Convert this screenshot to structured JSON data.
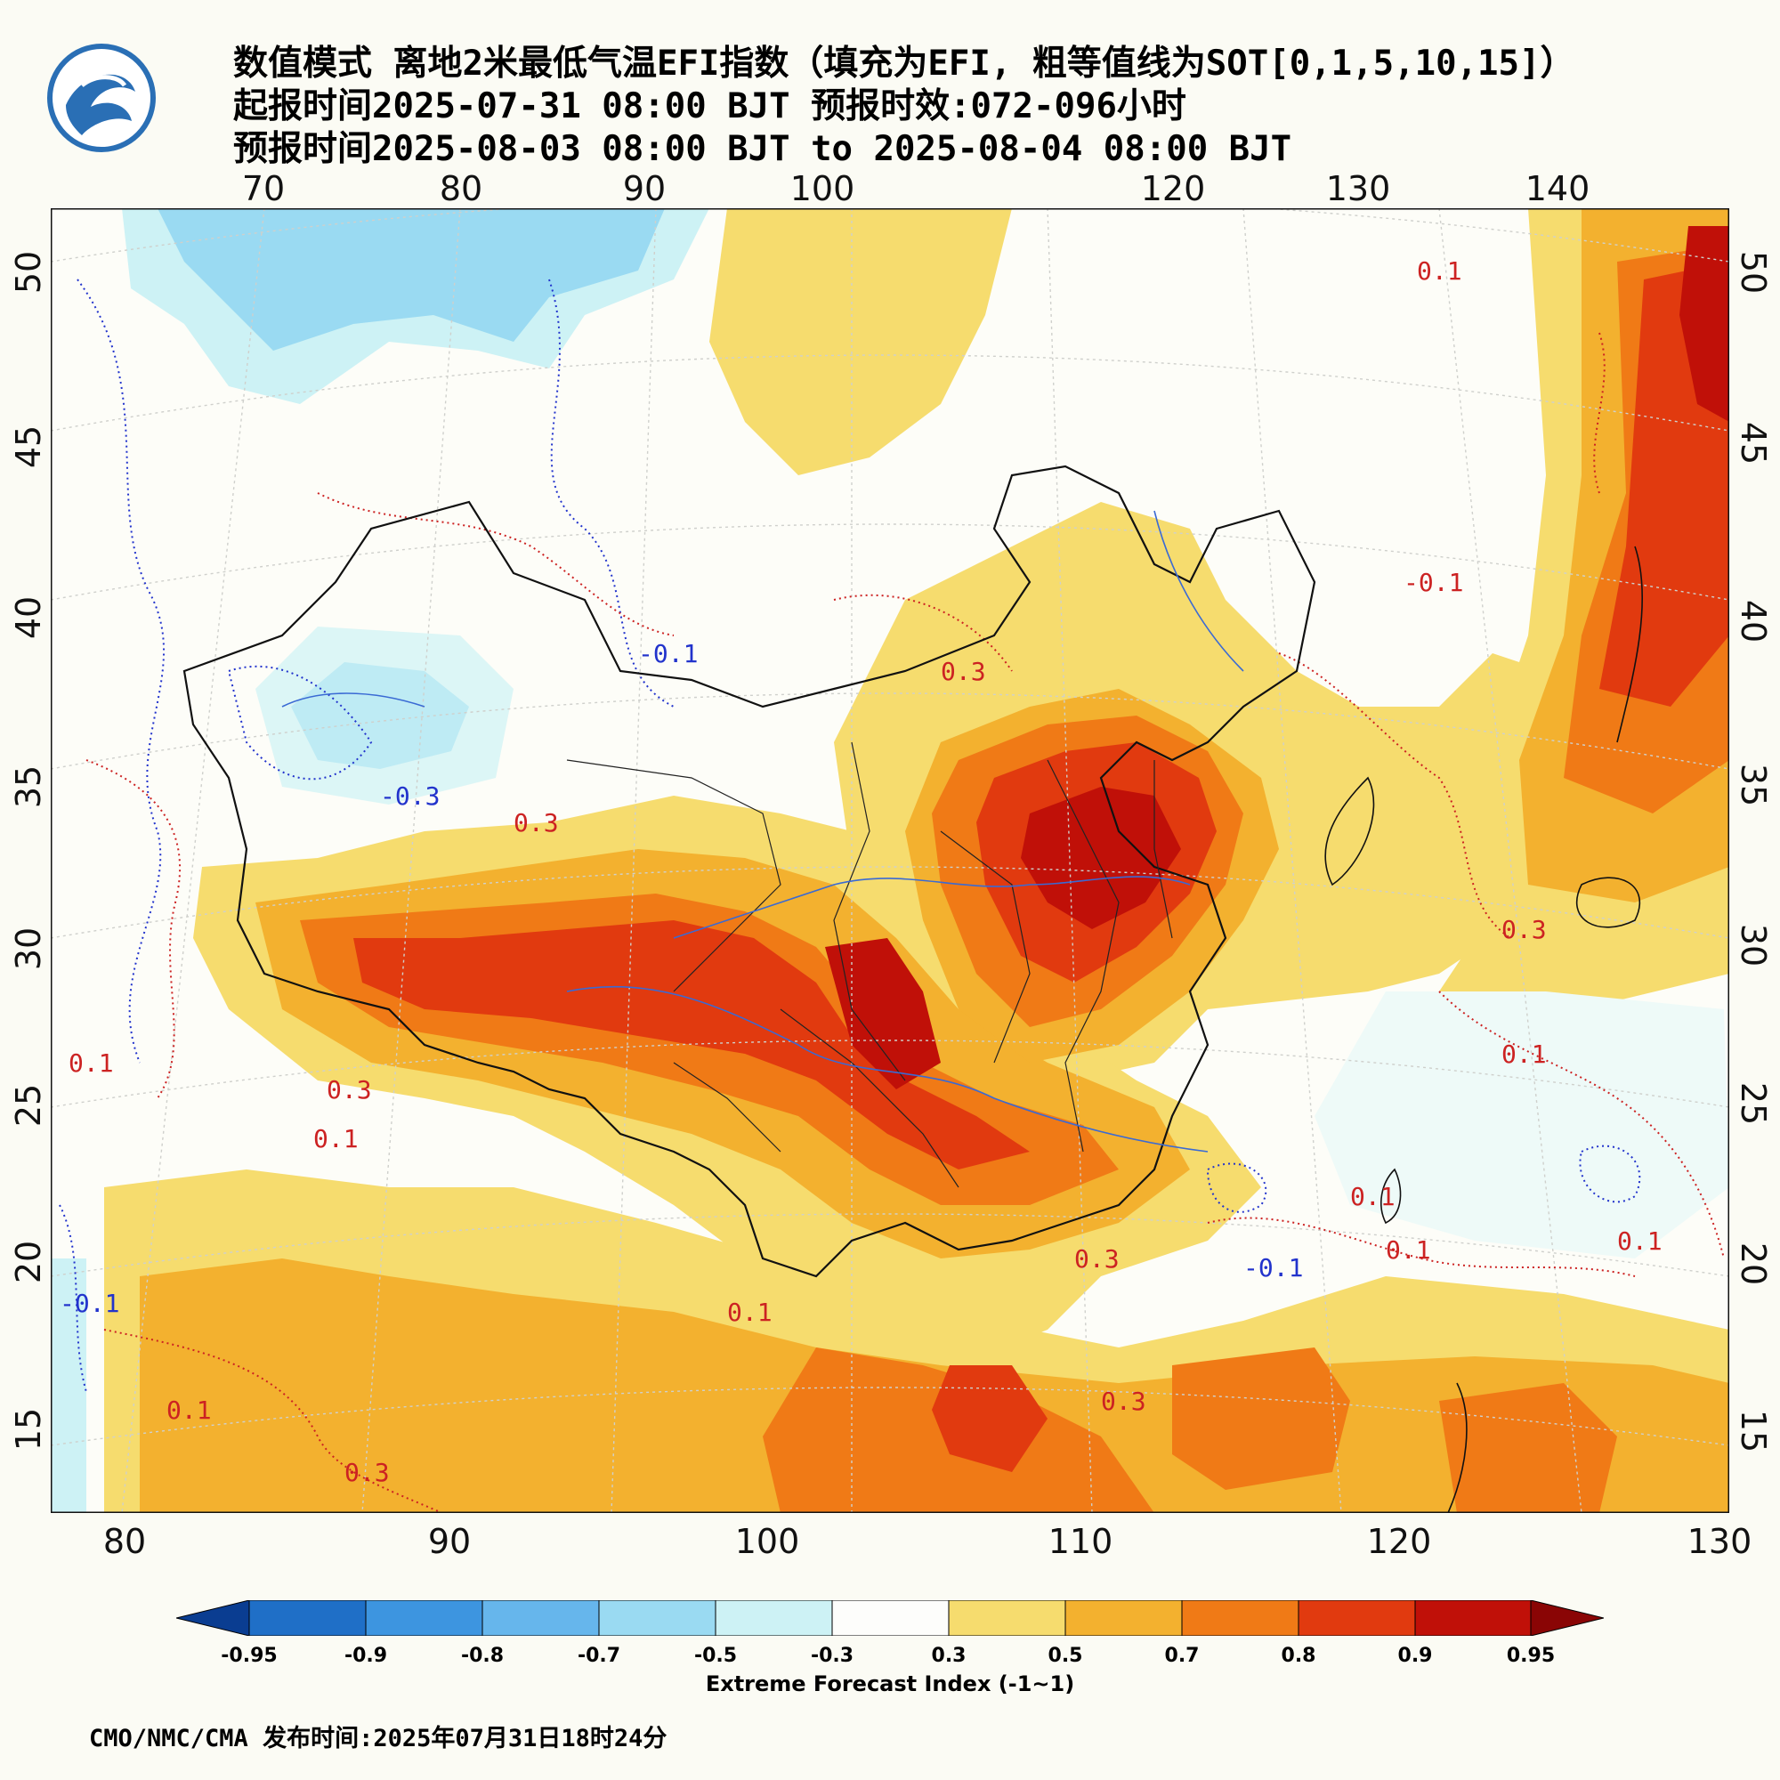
{
  "title": {
    "line1": "数值模式 离地2米最低气温EFI指数（填充为EFI, 粗等值线为SOT[0,1,5,10,15]）",
    "line2": "起报时间2025-07-31 08:00 BJT 预报时效:072-096小时",
    "line3": "预报时间2025-08-03 08:00 BJT to 2025-08-04 08:00 BJT"
  },
  "logo": {
    "icon": "cma-logo-icon",
    "color": "#2a6fb5"
  },
  "axes": {
    "top_lon_labels": [
      "70",
      "80",
      "90",
      "100",
      "120",
      "130",
      "140"
    ],
    "bottom_lon_labels": [
      "80",
      "90",
      "100",
      "110",
      "120",
      "130"
    ],
    "left_lat_labels": [
      "50",
      "45",
      "40",
      "35",
      "30",
      "25",
      "20",
      "15"
    ],
    "right_lat_labels": [
      "50",
      "45",
      "40",
      "35",
      "30",
      "25",
      "20",
      "15"
    ]
  },
  "contour_labels": [
    "-0.1",
    "-0.3",
    "0.1",
    "0.3",
    "-0.1",
    "0.3",
    "0.1",
    "0.3",
    "0.1",
    "0.1",
    "0.3",
    "0.1",
    "-0.1",
    "0.3",
    "0.1",
    "0.1",
    "-0.1",
    "0.3",
    "0.1",
    "0.1",
    "0.3"
  ],
  "colorbar": {
    "title": "Extreme Forecast Index (-1~1)",
    "tick_labels": [
      "-0.95",
      "-0.9",
      "-0.8",
      "-0.7",
      "-0.5",
      "-0.3",
      "0.3",
      "0.5",
      "0.7",
      "0.8",
      "0.9",
      "0.95"
    ],
    "colors": [
      "#0a3d91",
      "#1f6fc7",
      "#3d95e0",
      "#66b6ec",
      "#9adaf2",
      "#cdf2f5",
      "#fdfdfb",
      "#f6dc6e",
      "#f3b12f",
      "#f07a16",
      "#e13a0f",
      "#c01008",
      "#8a0505"
    ]
  },
  "footer": "CMO/NMC/CMA 发布时间:2025年07月31日18时24分"
}
